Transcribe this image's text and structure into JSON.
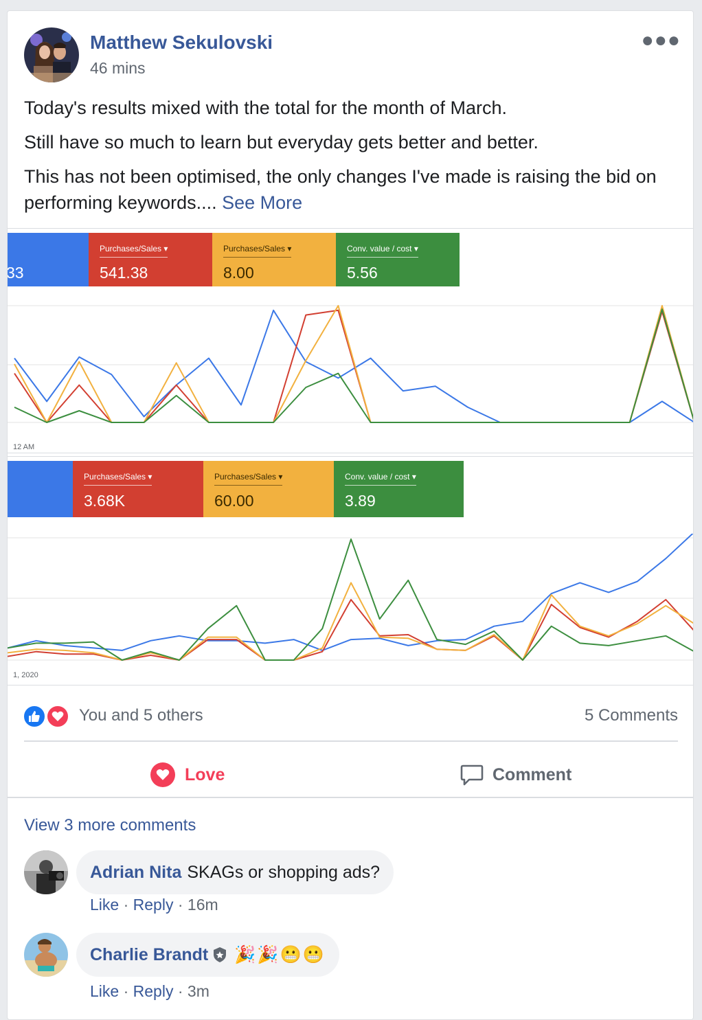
{
  "post": {
    "author": "Matthew Sekulovski",
    "time": "46 mins",
    "paragraphs": [
      "Today's results mixed with the total for the month of March.",
      "Still have so much to learn but everyday gets better and better.",
      "This has not been optimised, the only changes I've made is raising the bid on performing keywords...."
    ],
    "see_more": "See More"
  },
  "screenshot1": {
    "metrics": [
      {
        "label": "",
        "value": "33",
        "color": "#3b78e7"
      },
      {
        "label": "Purchases/Sales",
        "value": "541.38",
        "color": "#d23f31"
      },
      {
        "label": "Purchases/Sales",
        "value": "8.00",
        "color": "#f2b13f"
      },
      {
        "label": "Conv. value / cost",
        "value": "5.56",
        "color": "#3c8e3f"
      }
    ],
    "axis_label": "12 AM"
  },
  "screenshot2": {
    "metrics": [
      {
        "label": "",
        "value": "",
        "color": "#3b78e7"
      },
      {
        "label": "Purchases/Sales",
        "value": "3.68K",
        "color": "#d23f31"
      },
      {
        "label": "Purchases/Sales",
        "value": "60.00",
        "color": "#f2b13f"
      },
      {
        "label": "Conv. value / cost",
        "value": "3.89",
        "color": "#3c8e3f"
      }
    ],
    "axis_label": "1, 2020"
  },
  "chart_data": [
    {
      "type": "line",
      "grid": true,
      "x_points": 22,
      "series": [
        {
          "color": "#3b78e7",
          "values": [
            0.55,
            0.18,
            0.56,
            0.41,
            0.05,
            0.32,
            0.55,
            0.15,
            0.96,
            0.52,
            0.38,
            0.55,
            0.27,
            0.31,
            0.13,
            0,
            0,
            0,
            0,
            0,
            0.18,
            0
          ]
        },
        {
          "color": "#d23f31",
          "values": [
            0.42,
            0,
            0.32,
            0,
            0,
            0.32,
            0,
            0,
            0,
            0.92,
            0.96,
            0,
            0,
            0,
            0,
            0,
            0,
            0,
            0,
            0,
            0.95,
            0
          ]
        },
        {
          "color": "#f2b13f",
          "values": [
            0.5,
            0,
            0.52,
            0,
            0,
            0.51,
            0,
            0,
            0,
            0.53,
            1.0,
            0,
            0,
            0,
            0,
            0,
            0,
            0,
            0,
            0,
            1.0,
            0
          ]
        },
        {
          "color": "#3c8e3f",
          "values": [
            0.13,
            0,
            0.1,
            0,
            0,
            0.23,
            0,
            0,
            0,
            0.3,
            0.42,
            0,
            0,
            0,
            0,
            0,
            0,
            0,
            0,
            0,
            0.97,
            0
          ]
        }
      ]
    },
    {
      "type": "line",
      "grid": true,
      "x_points": 25,
      "series": [
        {
          "color": "#3b78e7",
          "values": [
            0.1,
            0.16,
            0.12,
            0.1,
            0.08,
            0.16,
            0.2,
            0.16,
            0.16,
            0.14,
            0.17,
            0.08,
            0.17,
            0.18,
            0.12,
            0.16,
            0.17,
            0.28,
            0.32,
            0.55,
            0.64,
            0.56,
            0.65,
            0.84,
            1.06
          ]
        },
        {
          "color": "#d23f31",
          "values": [
            0.03,
            0.07,
            0.05,
            0.05,
            0,
            0.04,
            0,
            0.17,
            0.17,
            0,
            0,
            0.07,
            0.5,
            0.2,
            0.21,
            0.09,
            0.08,
            0.2,
            0,
            0.46,
            0.27,
            0.19,
            0.32,
            0.5,
            0.24
          ]
        },
        {
          "color": "#f2b13f",
          "values": [
            0.06,
            0.09,
            0.08,
            0.06,
            0,
            0.06,
            0,
            0.19,
            0.19,
            0,
            0,
            0.1,
            0.64,
            0.19,
            0.18,
            0.09,
            0.08,
            0.21,
            0,
            0.54,
            0.28,
            0.2,
            0.3,
            0.45,
            0.3
          ]
        },
        {
          "color": "#3c8e3f",
          "values": [
            0.1,
            0.14,
            0.14,
            0.15,
            0,
            0.07,
            0,
            0.26,
            0.45,
            0,
            0,
            0.26,
            1.0,
            0.34,
            0.66,
            0.17,
            0.13,
            0.24,
            0,
            0.28,
            0.14,
            0.12,
            0.16,
            0.2,
            0.07
          ]
        }
      ]
    }
  ],
  "engagement": {
    "reactions_text": "You and 5 others",
    "comments_count": "5 Comments",
    "love_label": "Love",
    "comment_label": "Comment",
    "love_color": "#f33e58"
  },
  "comments": {
    "view_more": "View 3 more comments",
    "items": [
      {
        "name": "Adrian Nita",
        "text": "SKAGs or shopping ads?",
        "like": "Like",
        "reply": "Reply",
        "time": "16m"
      },
      {
        "name": "Charlie Brandt",
        "text": "🎉🎉😬😬",
        "like": "Like",
        "reply": "Reply",
        "time": "3m"
      }
    ]
  }
}
